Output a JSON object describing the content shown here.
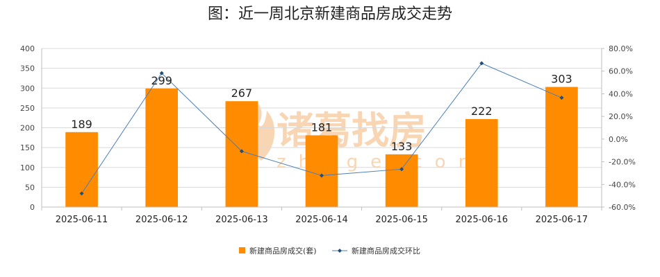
{
  "colors": {
    "bar": "#ff8c00",
    "line": "#4a7ebb",
    "marker": "#1f4e79",
    "grid": "#d9d9d9",
    "axis": "#bfbfbf",
    "watermark": "#f7cfa8"
  },
  "watermark": {
    "cn": "诸葛找房",
    "en": "zhuge.com"
  },
  "chart_data": {
    "type": "bar",
    "title": "图：近一周北京新建商品房成交走势",
    "categories": [
      "2025-06-11",
      "2025-06-12",
      "2025-06-13",
      "2025-06-14",
      "2025-06-15",
      "2025-06-16",
      "2025-06-17"
    ],
    "series": [
      {
        "name": "新建商品房成交(套)",
        "type": "bar",
        "axis": "left",
        "values": [
          189,
          299,
          267,
          181,
          133,
          222,
          303
        ],
        "data_labels": [
          "189",
          "299",
          "267",
          "181",
          "133",
          "222",
          "303"
        ]
      },
      {
        "name": "新建商品房成交环比",
        "type": "line",
        "axis": "right",
        "values": [
          -48.0,
          58.2,
          -10.7,
          -32.2,
          -26.5,
          66.9,
          36.5
        ]
      }
    ],
    "y_left": {
      "min": 0,
      "max": 400,
      "ticks": [
        "0",
        "50",
        "100",
        "150",
        "200",
        "250",
        "300",
        "350",
        "400"
      ]
    },
    "y_right": {
      "min": -60,
      "max": 80,
      "ticks": [
        "-60.0%",
        "-40.0%",
        "-20.0%",
        "0.0%",
        "20.0%",
        "40.0%",
        "60.0%",
        "80.0%"
      ]
    },
    "grid": true,
    "legend_position": "bottom"
  }
}
